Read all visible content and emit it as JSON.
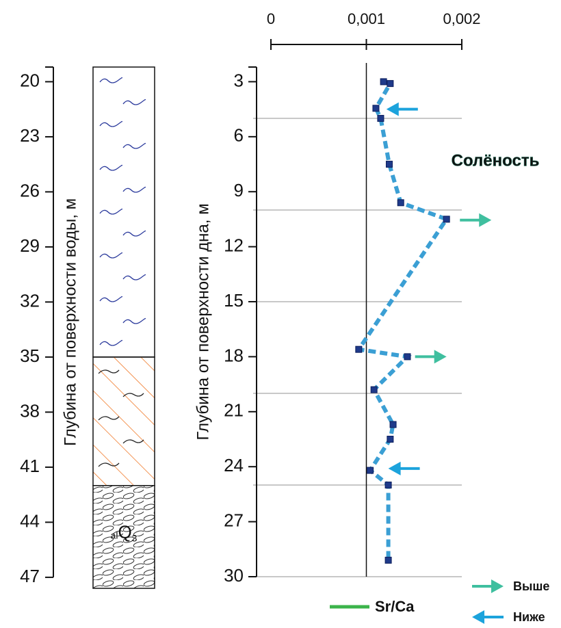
{
  "chart_data": [
    {
      "type": "column",
      "ylabel": "Глубина от поверхности воды, м",
      "ylim": [
        19.2,
        47.6
      ],
      "yticks": [
        20,
        23,
        26,
        29,
        32,
        35,
        38,
        41,
        44,
        47
      ],
      "layers": [
        {
          "pattern": "water",
          "top": 19.2,
          "bottom": 35,
          "color": "#2b3a9c"
        },
        {
          "pattern": "hatch",
          "top": 35,
          "bottom": 42,
          "color": "#f07a2a"
        },
        {
          "pattern": "gravel",
          "top": 42,
          "bottom": 47.6,
          "color": "#222222",
          "label": {
            "prefix": "al",
            "symbol": "Q",
            "index": "3"
          }
        }
      ]
    },
    {
      "type": "line",
      "ylabel": "Глубина от поверхности дна, м",
      "xlim": [
        0,
        0.002
      ],
      "xticks": [
        0,
        {
          "value": 0.001,
          "label": "0,001"
        },
        {
          "value": 0.002,
          "label": "0,002"
        }
      ],
      "ylim": [
        2.2,
        30
      ],
      "yticks": [
        3,
        6,
        9,
        12,
        15,
        18,
        21,
        24,
        27,
        30
      ],
      "grid_lines": [
        5,
        10,
        15,
        20,
        25,
        30
      ],
      "reference_x": 0.001,
      "series": [
        {
          "name": "Sr/Ca",
          "color": "#3b9fd4",
          "marker_color": "#1f3a8a",
          "legend_color": "#3cb44b",
          "x": [
            0.00118,
            0.00125,
            0.0011,
            0.00115,
            0.00124,
            0.00136,
            0.00184,
            0.00092,
            0.00143,
            0.00108,
            0.00128,
            0.00125,
            0.00104,
            0.00123,
            0.00123
          ],
          "values": [
            3.0,
            3.1,
            4.45,
            5.0,
            7.5,
            9.6,
            10.5,
            17.6,
            18.0,
            19.8,
            21.7,
            22.5,
            24.2,
            25.0,
            29.1
          ]
        }
      ],
      "annotation": {
        "text": "Солёность",
        "color": "#3aab8c"
      },
      "arrows": [
        {
          "direction": "left",
          "color": "#1ca3dc",
          "x": 0.00121,
          "y": 4.5
        },
        {
          "direction": "right",
          "color": "#3fbf9f",
          "x": 0.00231,
          "y": 10.55
        },
        {
          "direction": "right",
          "color": "#3fbf9f",
          "x": 0.00184,
          "y": 18.0
        },
        {
          "direction": "left",
          "color": "#1ca3dc",
          "x": 0.00123,
          "y": 24.1
        }
      ],
      "arrow_legend": [
        {
          "label": "Выше",
          "direction": "right",
          "color": "#3fbf9f"
        },
        {
          "label": "Ниже",
          "direction": "left",
          "color": "#1ca3dc"
        }
      ]
    }
  ]
}
